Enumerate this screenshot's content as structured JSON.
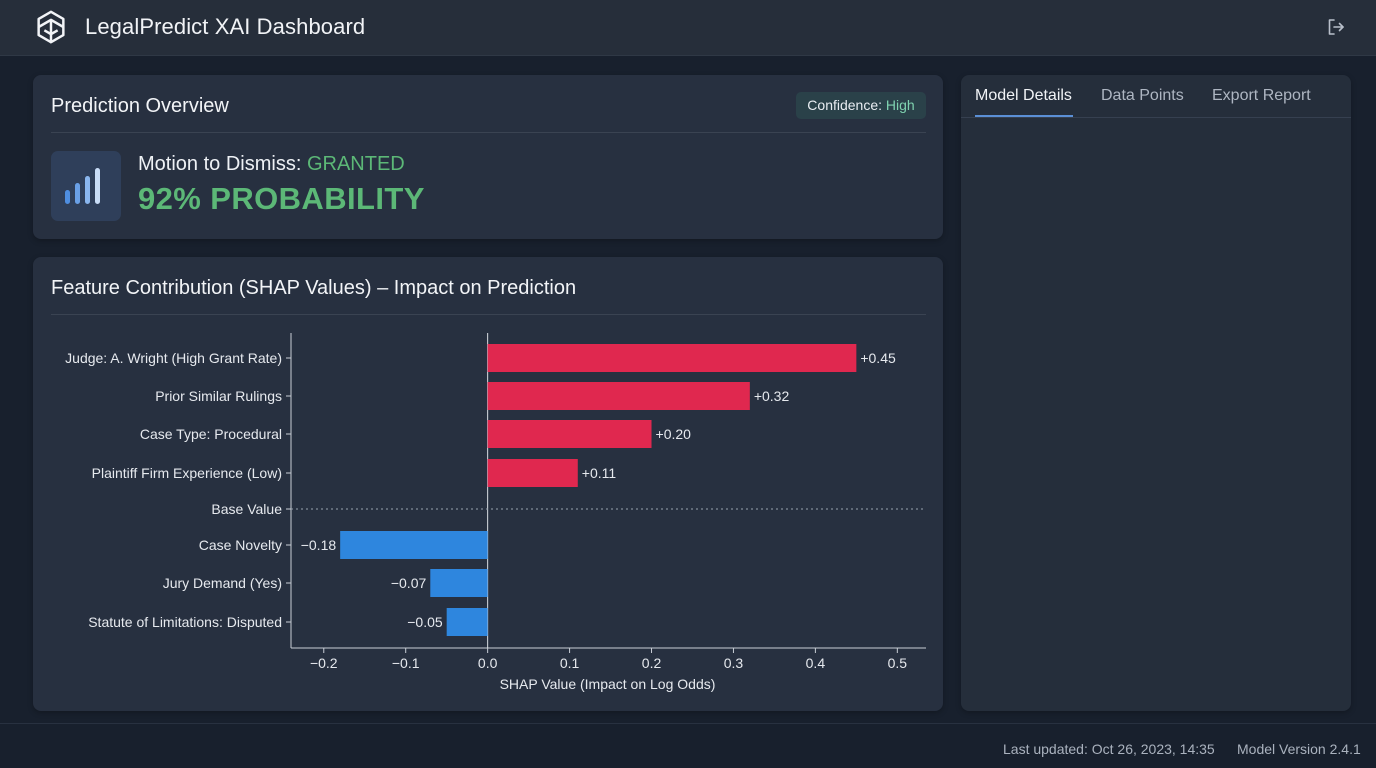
{
  "app": {
    "title": "LegalPredict XAI Dashboard",
    "logo_icon": "openai-knot-logo-icon",
    "logout_icon": "logout-icon"
  },
  "overview": {
    "title": "Prediction Overview",
    "confidence_label": "Confidence:",
    "confidence_value": "High",
    "prediction_icon": "bar-signal-icon",
    "motion_label": "Motion to Dismiss:",
    "motion_outcome": "GRANTED",
    "probability_text": "92% PROBABILITY"
  },
  "shap": {
    "title": "Feature Contribution (SHAP Values) – Impact on Prediction"
  },
  "chart_data": {
    "type": "bar",
    "orientation": "horizontal",
    "xlabel": "SHAP Value (Impact on Log Odds)",
    "ylabel": "",
    "xlim": [
      -0.24,
      0.535
    ],
    "xticks": [
      -0.2,
      -0.1,
      0.0,
      0.1,
      0.2,
      0.3,
      0.4,
      0.5
    ],
    "xtick_labels": [
      "−0.2",
      "−0.1",
      "0.0",
      "0.1",
      "0.2",
      "0.3",
      "0.4",
      "0.5"
    ],
    "categories": [
      "Judge: A. Wright (High Grant Rate)",
      "Prior Similar Rulings",
      "Case Type: Procedural",
      "Plaintiff Firm Experience (Low)",
      "Base Value",
      "Case Novelty",
      "Jury Demand (Yes)",
      "Statute of Limitations: Disputed"
    ],
    "values": [
      0.45,
      0.32,
      0.2,
      0.11,
      null,
      -0.18,
      -0.07,
      -0.05
    ],
    "value_labels": [
      "+0.45",
      "+0.32",
      "+0.20",
      "+0.11",
      "",
      "−0.18",
      "−0.07",
      "−0.05"
    ],
    "base_value_line": "dotted",
    "positive_color": "#e0284f",
    "negative_color": "#2e86de",
    "grid": false
  },
  "side_panel": {
    "tabs": [
      {
        "label": "Model Details",
        "active": true
      },
      {
        "label": "Data Points",
        "active": false
      },
      {
        "label": "Export Report",
        "active": false
      }
    ]
  },
  "footer": {
    "last_updated": "Last updated: Oct 26, 2023, 14:35",
    "model_version": "Model Version 2.4.1"
  },
  "colors": {
    "background": "#18202d",
    "card": "#273040",
    "accent_green": "#5cb877",
    "accent_blue": "#5b8fd6"
  }
}
